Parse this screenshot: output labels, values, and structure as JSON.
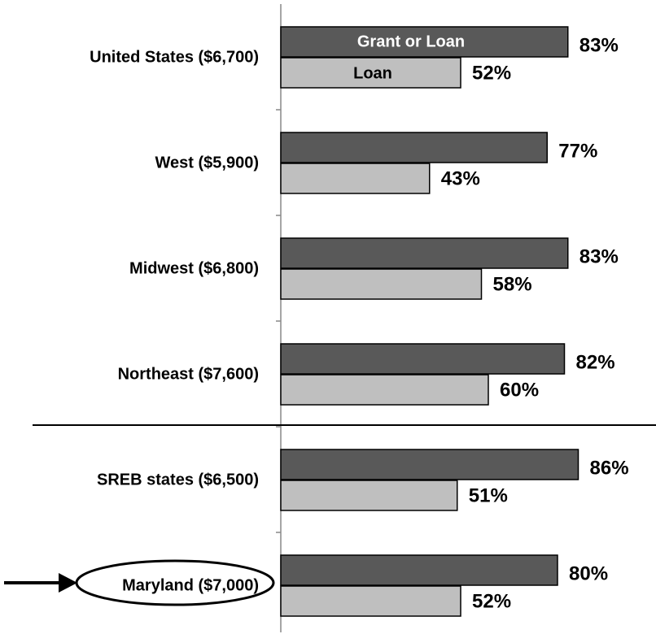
{
  "chart_data": {
    "type": "hbar",
    "categories": [
      "United States ($6,700)",
      "West ($5,900)",
      "Midwest ($6,800)",
      "Northeast ($7,600)",
      "SREB states ($6,500)",
      "Maryland ($7,000)"
    ],
    "series": [
      {
        "name": "Grant or Loan",
        "color": "#595959",
        "values": [
          83,
          77,
          83,
          82,
          86,
          80
        ],
        "value_labels": [
          "83%",
          "77%",
          "83%",
          "82%",
          "86%",
          "80%"
        ]
      },
      {
        "name": "Loan",
        "color": "#bfbfbf",
        "values": [
          52,
          43,
          58,
          60,
          51,
          52
        ],
        "value_labels": [
          "52%",
          "43%",
          "58%",
          "60%",
          "51%",
          "52%"
        ]
      }
    ],
    "xlim": [
      0,
      100
    ]
  }
}
